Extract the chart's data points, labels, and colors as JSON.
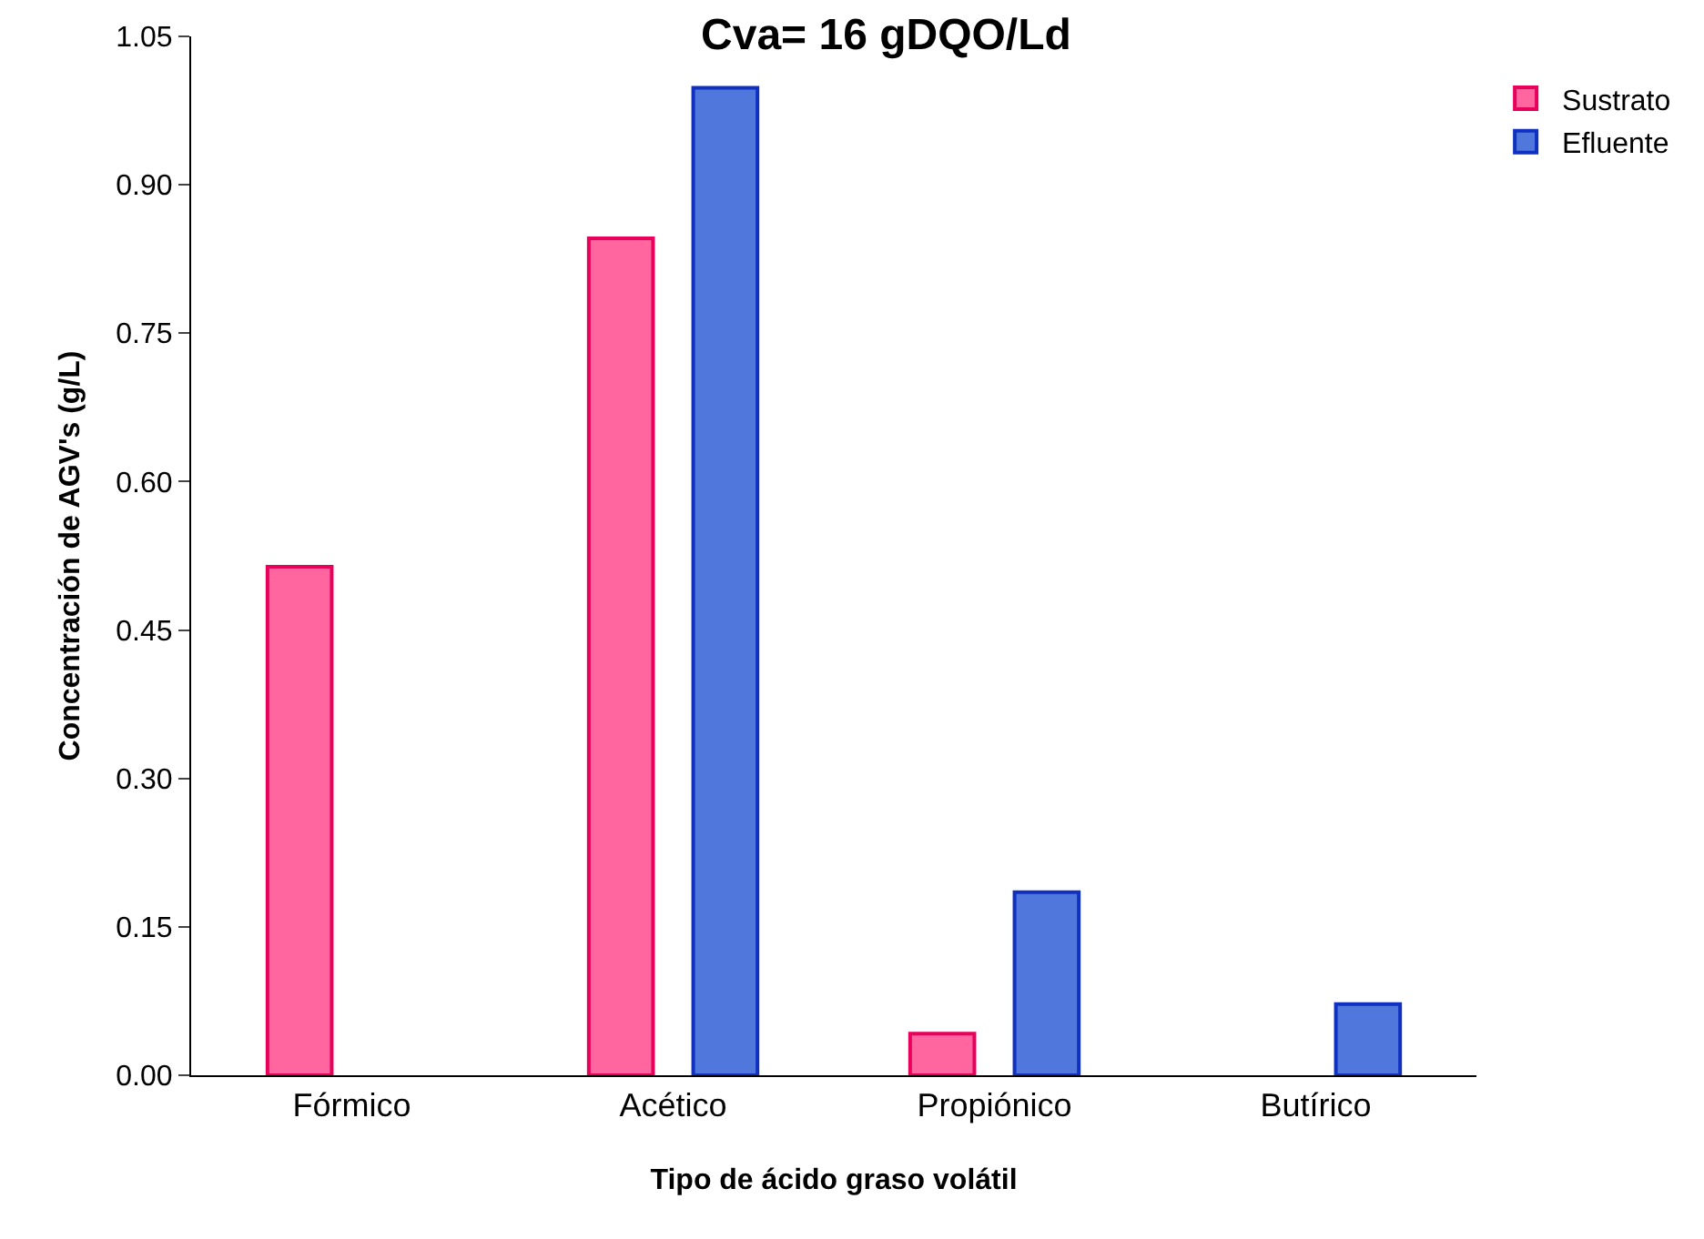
{
  "chart_data": {
    "type": "bar",
    "title": "Cva= 16 gDQO/Ld",
    "xlabel": "Tipo de ácido graso volátil",
    "ylabel": "Concentración de AGV's (g/L)",
    "categories": [
      "Fórmico",
      "Acético",
      "Propiónico",
      "Butírico"
    ],
    "series": [
      {
        "name": "Sustrato",
        "color": "#ff66a0",
        "values": [
          0.514,
          0.846,
          0.042,
          null
        ]
      },
      {
        "name": "Efluente",
        "color": "#5078dc",
        "values": [
          null,
          0.998,
          0.185,
          0.072
        ]
      }
    ],
    "ylim": [
      0,
      1.05
    ],
    "yticks": [
      {
        "value": 0,
        "label": "0.00"
      },
      {
        "value": 0.15,
        "label": "0.15"
      },
      {
        "value": 0.3,
        "label": "0.30"
      },
      {
        "value": 0.45,
        "label": "0.45"
      },
      {
        "value": 0.6,
        "label": "0.60"
      },
      {
        "value": 0.75,
        "label": "0.75"
      },
      {
        "value": 0.9,
        "label": "0.90"
      },
      {
        "value": 1.05,
        "label": "1.05"
      }
    ],
    "legend": "top right"
  }
}
